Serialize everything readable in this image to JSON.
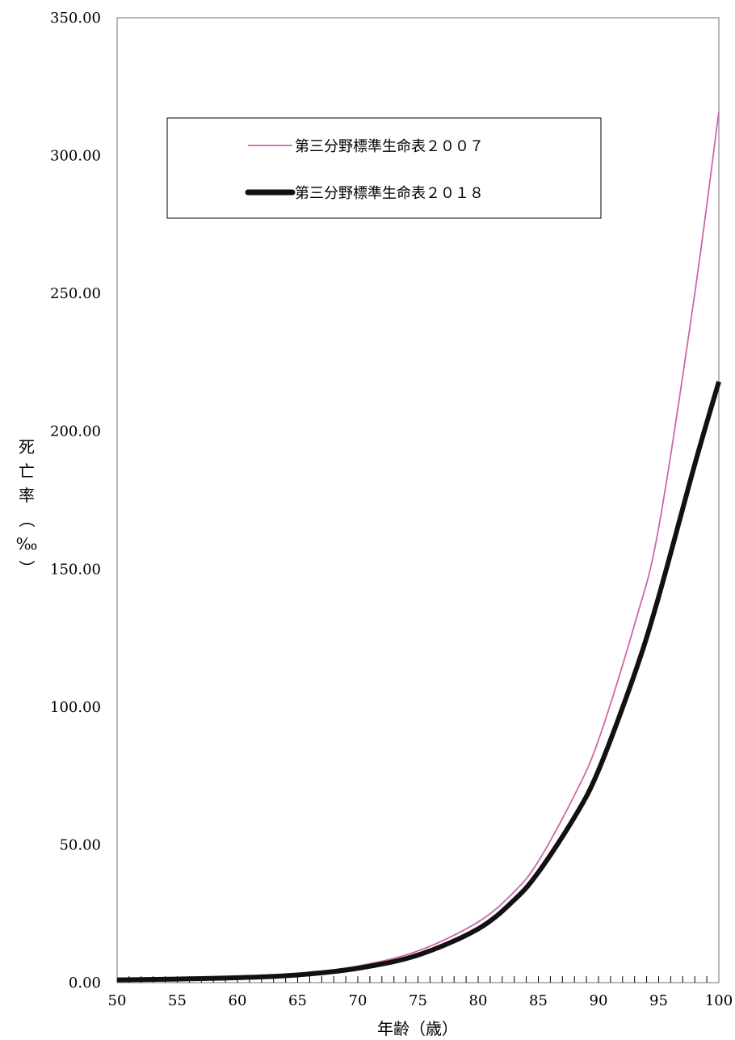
{
  "chart_data": {
    "type": "line",
    "xlabel": "年齢（歳）",
    "ylabel_chars": [
      "死",
      "亡",
      "率",
      "（",
      "‰",
      "）"
    ],
    "xlim": [
      50,
      100
    ],
    "ylim": [
      0,
      350
    ],
    "x_ticks": [
      50,
      55,
      60,
      65,
      70,
      75,
      80,
      85,
      90,
      95,
      100
    ],
    "x_tick_labels": [
      "50",
      "55",
      "60",
      "65",
      "70",
      "75",
      "80",
      "85",
      "90",
      "95",
      "100"
    ],
    "y_ticks": [
      0,
      50,
      100,
      150,
      200,
      250,
      300,
      350
    ],
    "y_tick_labels": [
      "0.00",
      "50.00",
      "100.00",
      "150.00",
      "200.00",
      "250.00",
      "300.00",
      "350.00"
    ],
    "x_minor_step": 1,
    "grid": false,
    "legend_position": "top-center",
    "series": [
      {
        "name": "第三分野標準生命表２００７",
        "color": "#cc66aa",
        "style": "thin",
        "points": [
          [
            50,
            1.0
          ],
          [
            55,
            1.4
          ],
          [
            60,
            2.0
          ],
          [
            65,
            3.2
          ],
          [
            70,
            6.0
          ],
          [
            75,
            11.5
          ],
          [
            80,
            22.0
          ],
          [
            83,
            33.0
          ],
          [
            85,
            44.0
          ],
          [
            88,
            68.0
          ],
          [
            90,
            88.0
          ],
          [
            93,
            130.0
          ],
          [
            95,
            165.0
          ],
          [
            98,
            250.0
          ],
          [
            100,
            316.0
          ]
        ]
      },
      {
        "name": "第三分野標準生命表２０１８",
        "color": "#111111",
        "style": "thick",
        "points": [
          [
            50,
            1.0
          ],
          [
            55,
            1.3
          ],
          [
            60,
            1.8
          ],
          [
            65,
            2.8
          ],
          [
            70,
            5.2
          ],
          [
            75,
            10.0
          ],
          [
            80,
            19.5
          ],
          [
            83,
            30.0
          ],
          [
            85,
            40.0
          ],
          [
            88,
            60.0
          ],
          [
            90,
            77.0
          ],
          [
            93,
            112.0
          ],
          [
            95,
            140.0
          ],
          [
            98,
            188.0
          ],
          [
            100,
            218.0
          ]
        ]
      }
    ]
  }
}
